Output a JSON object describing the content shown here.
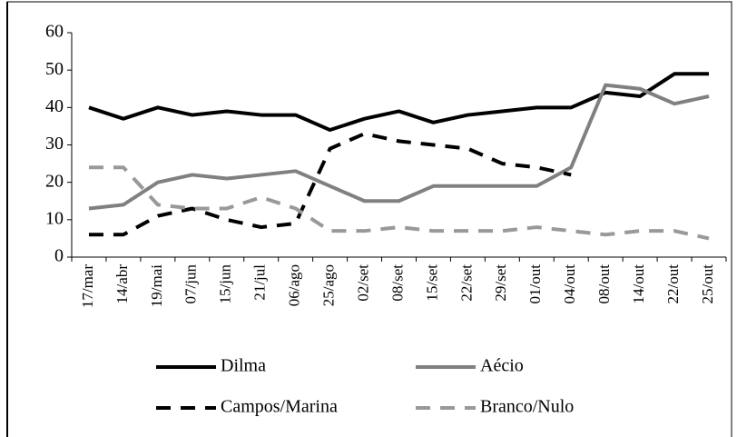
{
  "chart_data": {
    "type": "line",
    "categories": [
      "17/mar",
      "14/abr",
      "19/mai",
      "07/jun",
      "15/jun",
      "21/jul",
      "06/ago",
      "25/ago",
      "02/set",
      "08/set",
      "15/set",
      "22/set",
      "29/set",
      "01/out",
      "04/out",
      "08/out",
      "14/out",
      "22/out",
      "25/out"
    ],
    "series": [
      {
        "name": "Dilma",
        "color": "#000000",
        "dash": false,
        "values": [
          40,
          37,
          40,
          38,
          39,
          38,
          38,
          34,
          37,
          39,
          36,
          38,
          39,
          40,
          40,
          44,
          43,
          49,
          49
        ]
      },
      {
        "name": "Aécio",
        "color": "#808080",
        "dash": false,
        "values": [
          13,
          14,
          20,
          22,
          21,
          22,
          23,
          19,
          15,
          15,
          19,
          19,
          19,
          19,
          24,
          46,
          45,
          41,
          43
        ]
      },
      {
        "name": "Campos/Marina",
        "color": "#000000",
        "dash": true,
        "values": [
          6,
          6,
          11,
          13,
          10,
          8,
          9,
          29,
          33,
          31,
          30,
          29,
          25,
          24,
          22,
          null,
          null,
          null,
          null
        ]
      },
      {
        "name": "Branco/Nulo",
        "color": "#999999",
        "dash": true,
        "values": [
          24,
          24,
          14,
          13,
          13,
          16,
          13,
          7,
          7,
          8,
          7,
          7,
          7,
          8,
          7,
          6,
          7,
          7,
          5
        ]
      }
    ],
    "ylim": [
      0,
      60
    ],
    "yticks": [
      0,
      10,
      20,
      30,
      40,
      50,
      60
    ],
    "grid": false,
    "legend": "bottom"
  }
}
